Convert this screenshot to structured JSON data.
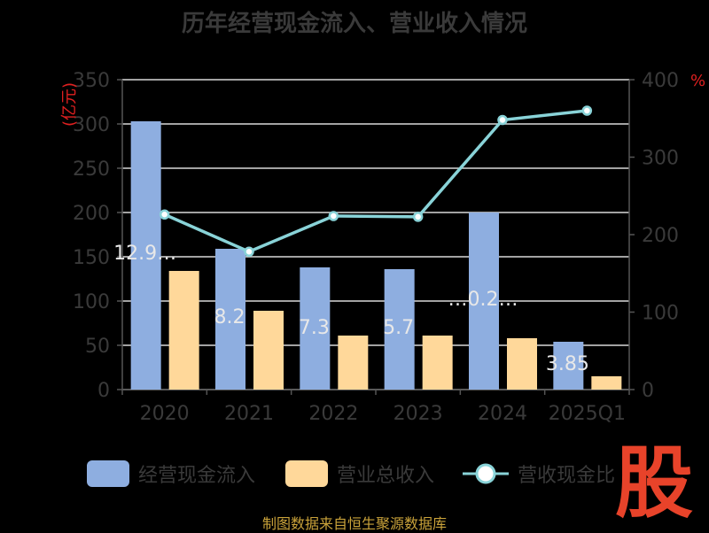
{
  "title": "历年经营现金流入、营业收入情况",
  "footer": "制图数据来自恒生聚源数据库",
  "logo_text": "股",
  "colors": {
    "cash_inflow": "#8eaee0",
    "revenue": "#ffd89a",
    "ratio": "#89d3d8",
    "grid": "#d9d9d9",
    "axis_text": "#3a3a3a",
    "unit_text": "#e02020"
  },
  "chart_data": {
    "type": "bar",
    "categories": [
      "2020",
      "2021",
      "2022",
      "2023",
      "2024",
      "2025Q1"
    ],
    "left_axis": {
      "unit": "(亿元)",
      "ticks": [
        0,
        50,
        100,
        150,
        200,
        250,
        300,
        350
      ],
      "ylim": [
        0,
        350
      ]
    },
    "right_axis": {
      "unit": "%",
      "ticks": [
        0,
        100,
        200,
        300,
        400
      ],
      "ylim": [
        0,
        400
      ]
    },
    "series": [
      {
        "name": "经营现金流入",
        "kind": "bar",
        "axis": "left",
        "values": [
          303,
          159,
          138,
          136,
          200,
          54
        ]
      },
      {
        "name": "营业总收入",
        "kind": "bar",
        "axis": "left",
        "values": [
          134,
          89,
          61,
          61,
          58,
          15
        ]
      },
      {
        "name": "营收现金比",
        "kind": "line",
        "axis": "right",
        "values": [
          226,
          178,
          224,
          223,
          348,
          360
        ]
      }
    ],
    "data_labels": [
      "12.9…",
      "8.2",
      "7.3",
      "5.7",
      "…0.2…",
      "3.85"
    ],
    "legend_position": "bottom",
    "grid": true
  }
}
